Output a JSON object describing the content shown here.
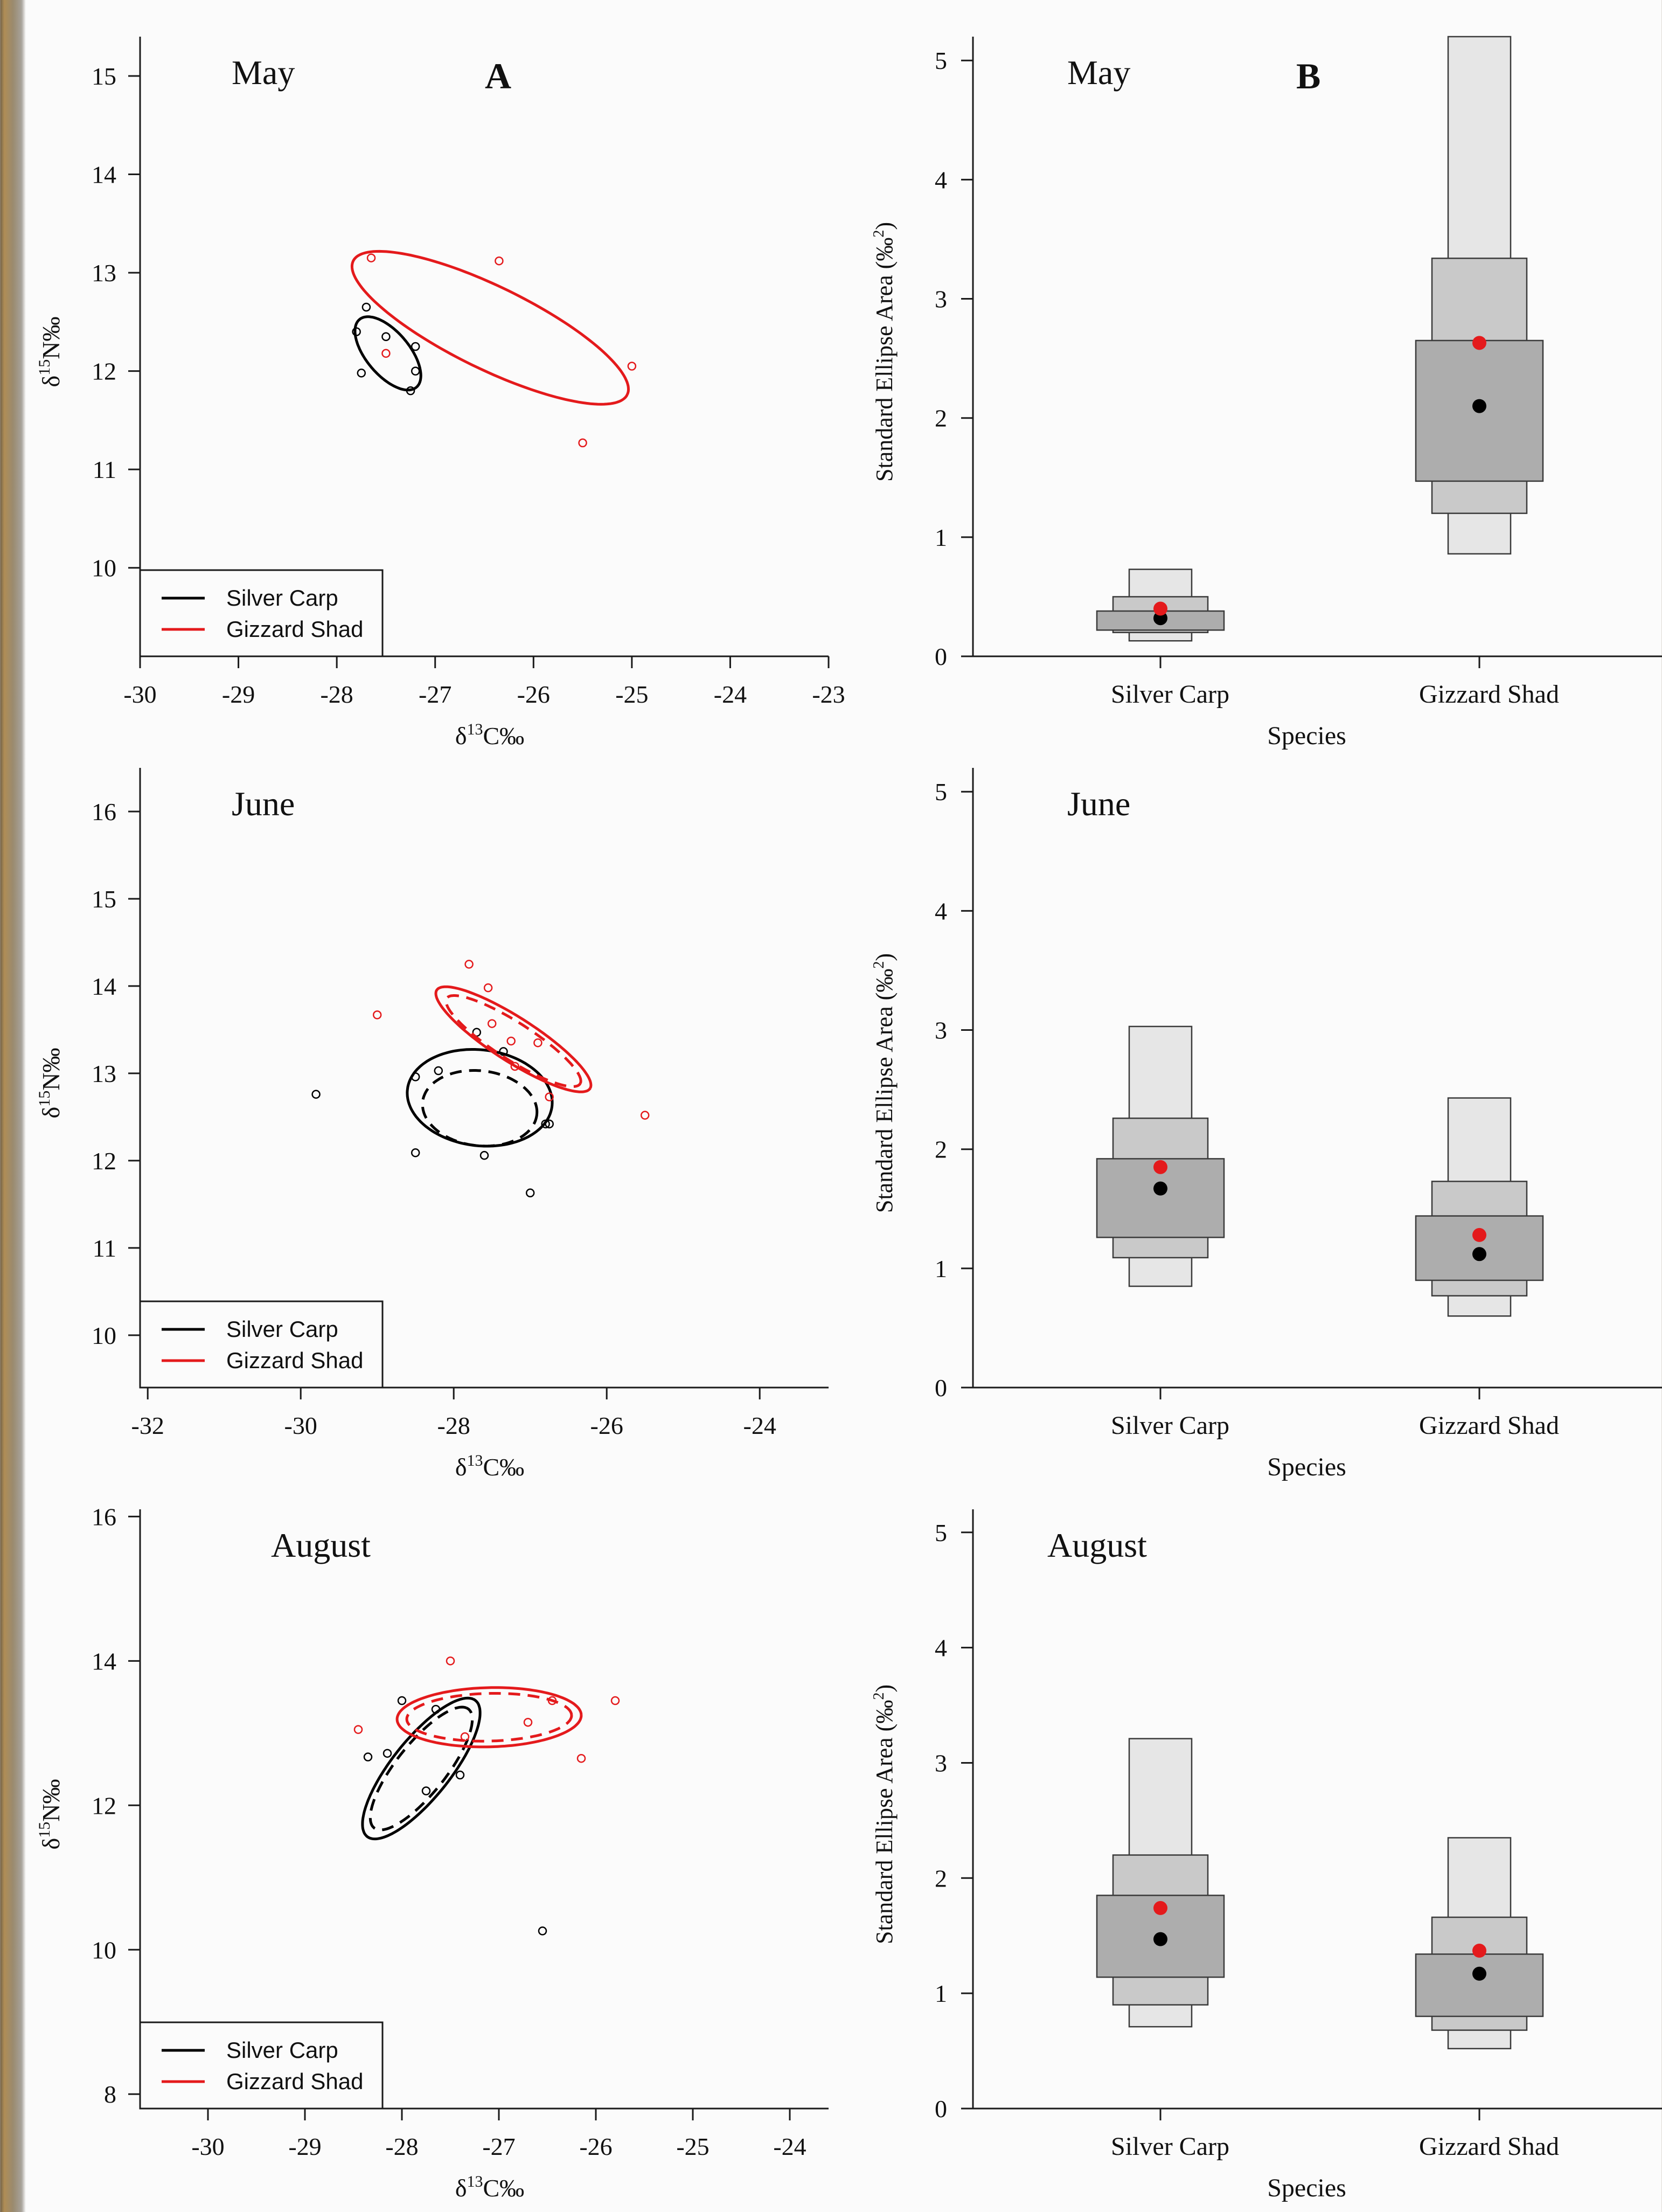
{
  "figure": {
    "background": "#fbfbfb",
    "colors": {
      "silver_carp": "#000000",
      "gizzard_shad": "#e41a1c",
      "box_95": "#e6e6e6",
      "box_75": "#c9c9c9",
      "box_50": "#adadad"
    }
  },
  "panel_labels": {
    "a": "A",
    "b": "B"
  },
  "legend": {
    "silver_carp": "Silver Carp",
    "gizzard_shad": "Gizzard Shad"
  },
  "chart_data": [
    {
      "id": "may-biplot",
      "type": "scatter",
      "title": "May",
      "panel_label": "A",
      "xlabel_base": "δ",
      "xlabel_sup": "13",
      "xlabel_tail": "C‰",
      "ylabel_base": "δ",
      "ylabel_sup": "15",
      "ylabel_tail": "N‰",
      "xlim": [
        -30,
        -23
      ],
      "ylim": [
        9.1,
        15.4
      ],
      "xticks": [
        -30,
        -29,
        -28,
        -27,
        -26,
        -25,
        -24,
        -23
      ],
      "yticks": [
        10,
        11,
        12,
        13,
        14,
        15
      ],
      "legend": "bottom-left",
      "series": [
        {
          "name": "Silver Carp",
          "color": "#000000",
          "points": [
            [
              -27.8,
              12.4
            ],
            [
              -27.7,
              12.65
            ],
            [
              -27.5,
              12.35
            ],
            [
              -27.2,
              12.25
            ],
            [
              -27.75,
              11.98
            ],
            [
              -27.25,
              11.8
            ],
            [
              -27.2,
              12.0
            ]
          ],
          "ellipses": [
            {
              "cx": -27.48,
              "cy": 12.18,
              "a": 0.45,
              "b": 0.22,
              "angle_deg": -50,
              "dashed": false
            }
          ]
        },
        {
          "name": "Gizzard Shad",
          "color": "#e41a1c",
          "points": [
            [
              -27.65,
              13.15
            ],
            [
              -26.35,
              13.12
            ],
            [
              -27.5,
              12.18
            ],
            [
              -25.0,
              12.05
            ],
            [
              -25.5,
              11.27
            ]
          ],
          "ellipses": [
            {
              "cx": -26.44,
              "cy": 12.44,
              "a": 1.55,
              "b": 0.42,
              "angle_deg": -26,
              "dashed": false
            }
          ]
        }
      ]
    },
    {
      "id": "may-sea",
      "type": "box",
      "title": "May",
      "panel_label": "B",
      "ylabel": "Standard Ellipse Area (‰",
      "ylabel_sup": "2",
      "ylabel_tail": ")",
      "xlabel": "Species",
      "ylim": [
        0,
        5.2
      ],
      "yticks": [
        0,
        1,
        2,
        3,
        4,
        5
      ],
      "categories": [
        "Silver Carp",
        "Gizzard Shad"
      ],
      "series": [
        {
          "name": "Silver Carp",
          "ci95": [
            0.13,
            0.73
          ],
          "ci75": [
            0.2,
            0.5
          ],
          "ci50": [
            0.22,
            0.38
          ],
          "mode": 0.32,
          "sea_c": 0.4
        },
        {
          "name": "Gizzard Shad",
          "ci95": [
            0.86,
            5.2
          ],
          "ci75": [
            1.2,
            3.34
          ],
          "ci50": [
            1.47,
            2.65
          ],
          "mode": 2.1,
          "sea_c": 2.63
        }
      ]
    },
    {
      "id": "june-biplot",
      "type": "scatter",
      "title": "June",
      "xlabel_base": "δ",
      "xlabel_sup": "13",
      "xlabel_tail": "C‰",
      "ylabel_base": "δ",
      "ylabel_sup": "15",
      "ylabel_tail": "N‰",
      "xlim": [
        -32.1,
        -23.1
      ],
      "ylim": [
        9.4,
        16.5
      ],
      "xticks": [
        -32,
        -30,
        -28,
        -26,
        -24
      ],
      "yticks": [
        10,
        11,
        12,
        13,
        14,
        15,
        16
      ],
      "legend": "bottom-left",
      "series": [
        {
          "name": "Silver Carp",
          "color": "#000000",
          "points": [
            [
              -29.8,
              12.76
            ],
            [
              -28.5,
              12.96
            ],
            [
              -28.2,
              13.03
            ],
            [
              -27.7,
              13.47
            ],
            [
              -27.35,
              13.25
            ],
            [
              -26.8,
              12.42
            ],
            [
              -26.75,
              12.42
            ],
            [
              -27.6,
              12.06
            ],
            [
              -28.5,
              12.09
            ],
            [
              -27.0,
              11.63
            ]
          ],
          "ellipses": [
            {
              "cx": -27.66,
              "cy": 12.72,
              "a": 0.95,
              "b": 0.55,
              "angle_deg": -5,
              "dashed": false
            },
            {
              "cx": -27.66,
              "cy": 12.6,
              "a": 0.75,
              "b": 0.43,
              "angle_deg": -5,
              "dashed": true
            }
          ]
        },
        {
          "name": "Gizzard Shad",
          "color": "#e41a1c",
          "points": [
            [
              -29.0,
              13.67
            ],
            [
              -27.8,
              14.25
            ],
            [
              -27.55,
              13.98
            ],
            [
              -27.5,
              13.57
            ],
            [
              -27.25,
              13.37
            ],
            [
              -27.2,
              13.08
            ],
            [
              -26.9,
              13.35
            ],
            [
              -26.75,
              12.73
            ],
            [
              -25.5,
              12.52
            ]
          ],
          "ellipses": [
            {
              "cx": -27.22,
              "cy": 13.39,
              "a": 1.15,
              "b": 0.26,
              "angle_deg": -29,
              "dashed": false
            },
            {
              "cx": -27.22,
              "cy": 13.37,
              "a": 1.0,
              "b": 0.22,
              "angle_deg": -29,
              "dashed": true
            }
          ]
        }
      ]
    },
    {
      "id": "june-sea",
      "type": "box",
      "title": "June",
      "ylabel": "Standard Ellipse Area (‰",
      "ylabel_sup": "2",
      "ylabel_tail": ")",
      "xlabel": "Species",
      "ylim": [
        0,
        5.2
      ],
      "yticks": [
        0,
        1,
        2,
        3,
        4,
        5
      ],
      "categories": [
        "Silver Carp",
        "Gizzard Shad"
      ],
      "series": [
        {
          "name": "Silver Carp",
          "ci95": [
            0.85,
            3.03
          ],
          "ci75": [
            1.09,
            2.26
          ],
          "ci50": [
            1.26,
            1.92
          ],
          "mode": 1.67,
          "sea_c": 1.85
        },
        {
          "name": "Gizzard Shad",
          "ci95": [
            0.6,
            2.43
          ],
          "ci75": [
            0.77,
            1.73
          ],
          "ci50": [
            0.9,
            1.44
          ],
          "mode": 1.12,
          "sea_c": 1.28
        }
      ]
    },
    {
      "id": "august-biplot",
      "type": "scatter",
      "title": "August",
      "xlabel_base": "δ",
      "xlabel_sup": "13",
      "xlabel_tail": "C‰",
      "ylabel_base": "δ",
      "ylabel_sup": "15",
      "ylabel_tail": "N‰",
      "xlim": [
        -30.7,
        -23.6
      ],
      "ylim": [
        7.8,
        16.1
      ],
      "xticks": [
        -30,
        -29,
        -28,
        -27,
        -26,
        -25,
        -24
      ],
      "yticks": [
        8,
        10,
        12,
        14,
        16
      ],
      "legend": "bottom-left",
      "series": [
        {
          "name": "Silver Carp",
          "color": "#000000",
          "points": [
            [
              -28.35,
              12.67
            ],
            [
              -28.15,
              12.72
            ],
            [
              -28.0,
              13.45
            ],
            [
              -27.65,
              13.33
            ],
            [
              -27.75,
              12.2
            ],
            [
              -27.4,
              12.42
            ],
            [
              -26.55,
              10.26
            ]
          ],
          "ellipses": [
            {
              "cx": -27.8,
              "cy": 12.51,
              "a": 1.1,
              "b": 0.33,
              "angle_deg": 61,
              "dashed": false
            },
            {
              "cx": -27.8,
              "cy": 12.51,
              "a": 0.96,
              "b": 0.28,
              "angle_deg": 61,
              "dashed": true
            }
          ]
        },
        {
          "name": "Gizzard Shad",
          "color": "#e41a1c",
          "points": [
            [
              -28.45,
              13.05
            ],
            [
              -27.5,
              14.0
            ],
            [
              -27.35,
              12.95
            ],
            [
              -26.7,
              13.15
            ],
            [
              -26.45,
              13.45
            ],
            [
              -26.15,
              12.65
            ],
            [
              -25.8,
              13.45
            ]
          ],
          "ellipses": [
            {
              "cx": -27.1,
              "cy": 13.22,
              "a": 0.95,
              "b": 0.41,
              "angle_deg": 2,
              "dashed": false
            },
            {
              "cx": -27.1,
              "cy": 13.22,
              "a": 0.85,
              "b": 0.33,
              "angle_deg": 2,
              "dashed": true
            }
          ]
        }
      ]
    },
    {
      "id": "august-sea",
      "type": "box",
      "title": "August",
      "ylabel": "Standard Ellipse Area (‰",
      "ylabel_sup": "2",
      "ylabel_tail": ")",
      "xlabel": "Species",
      "ylim": [
        0,
        5.2
      ],
      "yticks": [
        0,
        1,
        2,
        3,
        4,
        5
      ],
      "categories": [
        "Silver Carp",
        "Gizzard Shad"
      ],
      "series": [
        {
          "name": "Silver Carp",
          "ci95": [
            0.71,
            3.21
          ],
          "ci75": [
            0.9,
            2.2
          ],
          "ci50": [
            1.14,
            1.85
          ],
          "mode": 1.47,
          "sea_c": 1.74
        },
        {
          "name": "Gizzard Shad",
          "ci95": [
            0.52,
            2.35
          ],
          "ci75": [
            0.68,
            1.66
          ],
          "ci50": [
            0.8,
            1.34
          ],
          "mode": 1.17,
          "sea_c": 1.37
        }
      ]
    }
  ]
}
